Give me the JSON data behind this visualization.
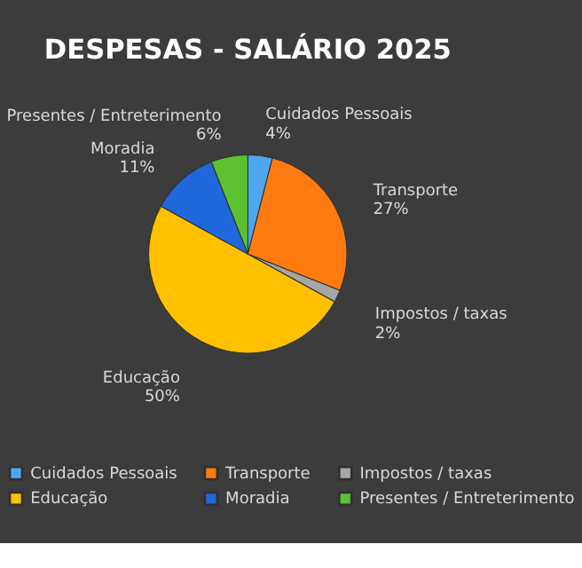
{
  "chart_data": {
    "type": "pie",
    "title": "DESPESAS - SALÁRIO 2025",
    "categories": [
      "Cuidados Pessoais",
      "Transporte",
      "Impostos / taxas",
      "Educação",
      "Moradia",
      "Presentes / Entreterimento"
    ],
    "values": [
      4,
      27,
      2,
      50,
      11,
      6
    ],
    "value_labels": [
      "4%",
      "27%",
      "2%",
      "50%",
      "11%",
      "6%"
    ],
    "colors": [
      "#4ea6f0",
      "#ff7b0f",
      "#a6a6a6",
      "#ffc000",
      "#1f68dc",
      "#5cc230"
    ],
    "legend": "bottom"
  }
}
